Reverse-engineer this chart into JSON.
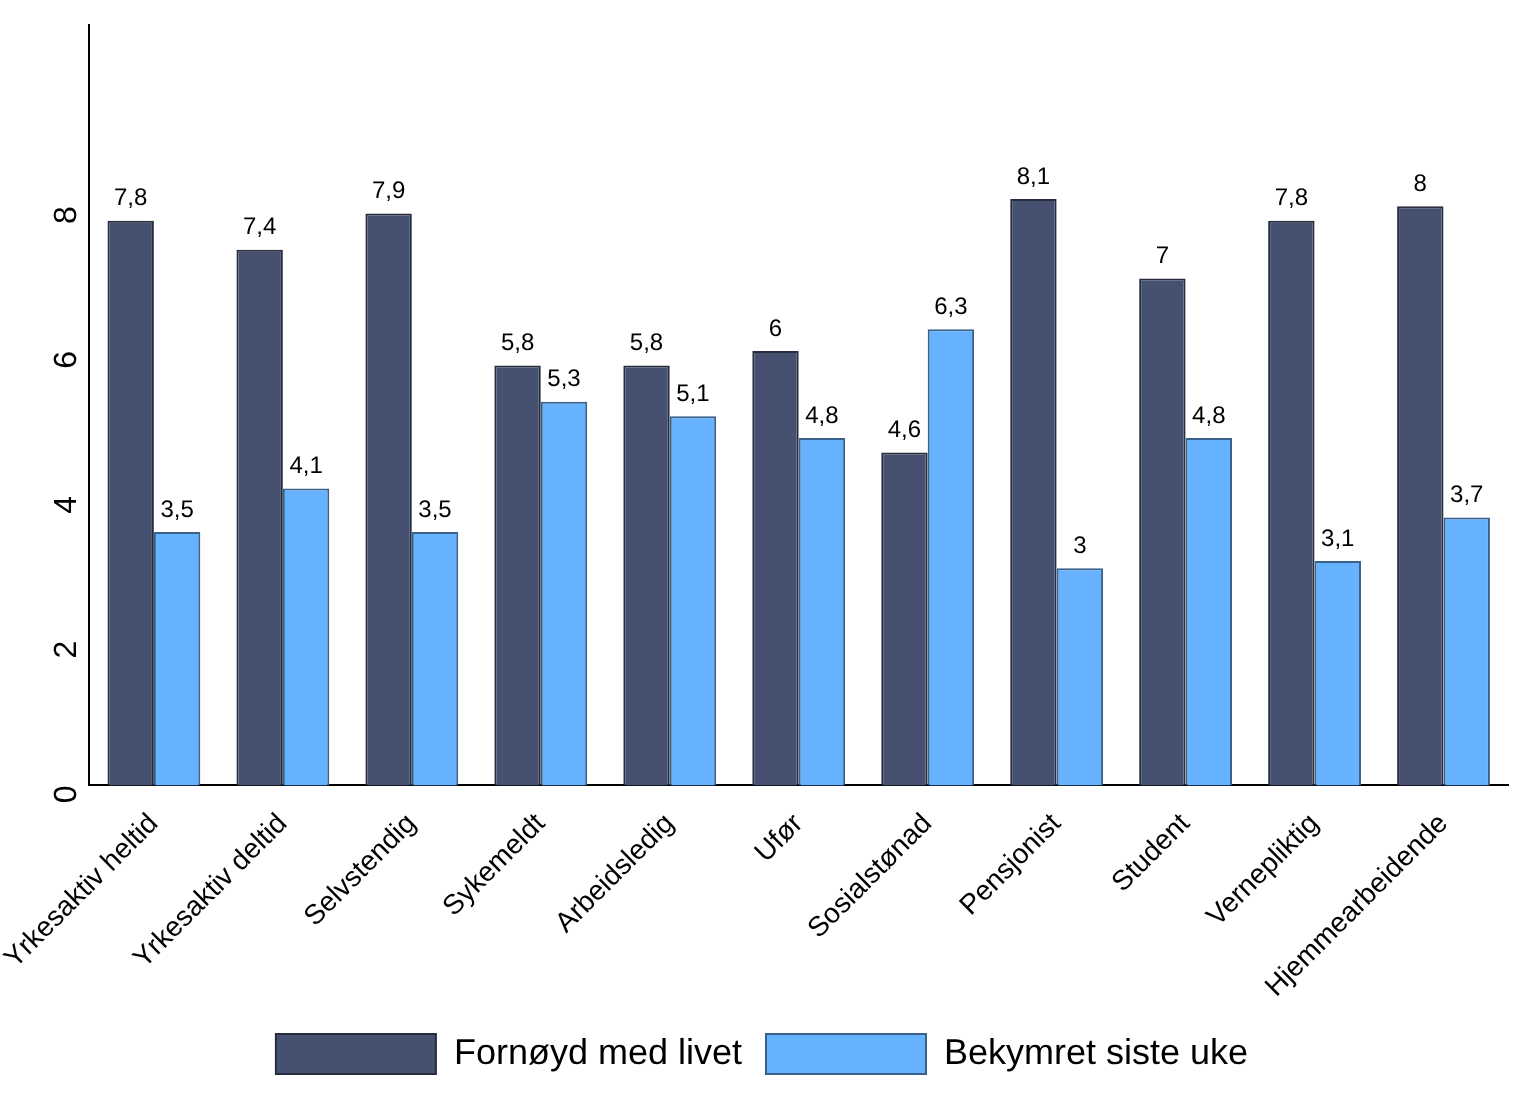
{
  "chart_data": {
    "type": "bar",
    "categories": [
      "Yrkesaktiv heltid",
      "Yrkesaktiv deltid",
      "Selvstendig",
      "Sykemeldt",
      "Arbeidsledig",
      "Ufør",
      "Sosialstønad",
      "Pensjonist",
      "Student",
      "Vernepliktig",
      "Hjemmearbeidende"
    ],
    "series": [
      {
        "name": "Fornøyd med livet",
        "color": "#465172",
        "values": [
          7.8,
          7.4,
          7.9,
          5.8,
          5.8,
          6,
          4.6,
          8.1,
          7,
          7.8,
          8
        ],
        "value_labels": [
          "7,8",
          "7,4",
          "7,9",
          "5,8",
          "5,8",
          "6",
          "4,6",
          "8,1",
          "7",
          "7,8",
          "8"
        ]
      },
      {
        "name": "Bekymret siste uke",
        "color": "#66b2ff",
        "values": [
          3.5,
          4.1,
          3.5,
          5.3,
          5.1,
          4.8,
          6.3,
          3,
          4.8,
          3.1,
          3.7
        ],
        "value_labels": [
          "3,5",
          "4,1",
          "3,5",
          "5,3",
          "5,1",
          "4,8",
          "6,3",
          "3",
          "4,8",
          "3,1",
          "3,7"
        ]
      }
    ],
    "ylim": [
      0,
      10.5
    ],
    "yticks": [
      0,
      2,
      4,
      6,
      8
    ],
    "grid": false,
    "legend": "bottom"
  }
}
